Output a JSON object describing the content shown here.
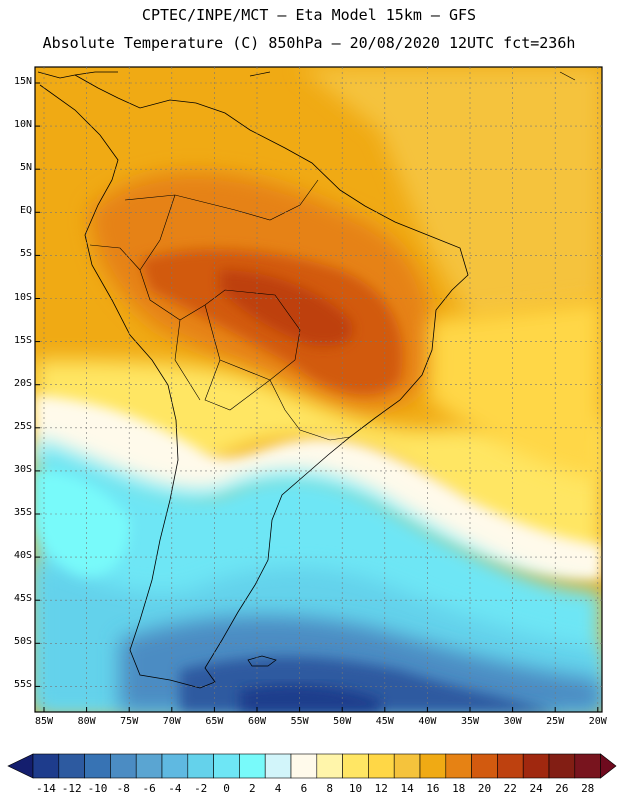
{
  "header": {
    "line1": "CPTEC/INPE/MCT —  Eta Model 15km — GFS",
    "line2": "Absolute Temperature (C) 850hPa — 20/08/2020 12UTC fct=236h"
  },
  "map": {
    "lat_labels": [
      "15N",
      "10N",
      "5N",
      "EQ",
      "5S",
      "10S",
      "15S",
      "20S",
      "25S",
      "30S",
      "35S",
      "40S",
      "45S",
      "50S",
      "55S"
    ],
    "lon_labels": [
      "85W",
      "80W",
      "75W",
      "70W",
      "65W",
      "60W",
      "55W",
      "50W",
      "45W",
      "40W",
      "35W",
      "30W",
      "25W",
      "20W"
    ]
  },
  "colorbar": {
    "labels": [
      "-14",
      "-12",
      "-10",
      "-8",
      "-6",
      "-4",
      "-2",
      "0",
      "2",
      "4",
      "6",
      "8",
      "10",
      "12",
      "14",
      "16",
      "18",
      "20",
      "22",
      "24",
      "26",
      "28"
    ],
    "colors": [
      "#1e3c8c",
      "#2d5aa0",
      "#3773b4",
      "#4b8cc3",
      "#5aa5d2",
      "#5fb9e1",
      "#64d2eb",
      "#6ee6f5",
      "#78fafa",
      "#d2f5fa",
      "#fffaeb",
      "#fff5aa",
      "#ffe664",
      "#ffd746",
      "#f5c33c",
      "#f0aa14",
      "#e68214",
      "#d25a0f",
      "#be410f",
      "#a0280f",
      "#821e14",
      "#78141e"
    ],
    "low_arrow_color": "#141e6e",
    "high_arrow_color": "#6e0a1e"
  }
}
